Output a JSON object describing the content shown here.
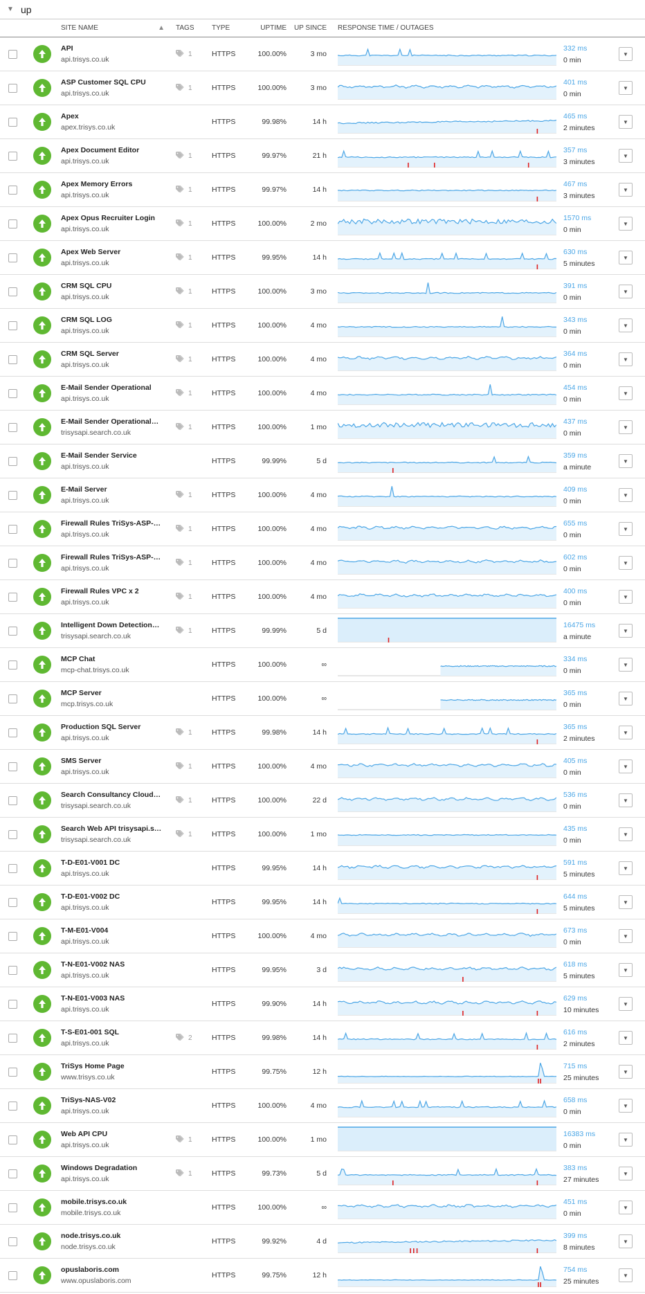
{
  "group": {
    "name": "up"
  },
  "header": {
    "site_name": "SITE NAME",
    "tags": "TAGS",
    "type": "TYPE",
    "uptime": "UPTIME",
    "up_since": "UP SINCE",
    "response": "RESPONSE TIME / OUTAGES"
  },
  "colors": {
    "up_green": "#5fb832",
    "spark_blue": "#4ba6e6",
    "outage_red": "#e02020"
  },
  "rows": [
    {
      "name": "API",
      "url": "api.trisys.co.uk",
      "tags": "1",
      "type": "HTTPS",
      "uptime": "100.00%",
      "since": "3 mo",
      "ms": "332 ms",
      "dur": "0 min",
      "style": "spiky",
      "outages": []
    },
    {
      "name": "ASP Customer SQL CPU",
      "url": "api.trisys.co.uk",
      "tags": "1",
      "type": "HTTPS",
      "uptime": "100.00%",
      "since": "3 mo",
      "ms": "401 ms",
      "dur": "0 min",
      "style": "wavy",
      "outages": []
    },
    {
      "name": "Apex",
      "url": "apex.trisys.co.uk",
      "tags": "",
      "type": "HTTPS",
      "uptime": "99.98%",
      "since": "14 h",
      "ms": "465 ms",
      "dur": "2 minutes",
      "style": "rising",
      "outages": [
        0.91
      ]
    },
    {
      "name": "Apex Document Editor",
      "url": "api.trisys.co.uk",
      "tags": "1",
      "type": "HTTPS",
      "uptime": "99.97%",
      "since": "21 h",
      "ms": "357 ms",
      "dur": "3 minutes",
      "style": "spiky",
      "outages": [
        0.32,
        0.44,
        0.87
      ]
    },
    {
      "name": "Apex Memory Errors",
      "url": "api.trisys.co.uk",
      "tags": "1",
      "type": "HTTPS",
      "uptime": "99.97%",
      "since": "14 h",
      "ms": "467 ms",
      "dur": "3 minutes",
      "style": "flat",
      "outages": [
        0.91
      ]
    },
    {
      "name": "Apex Opus Recruiter Login",
      "url": "api.trisys.co.uk",
      "tags": "1",
      "type": "HTTPS",
      "uptime": "100.00%",
      "since": "2 mo",
      "ms": "1570 ms",
      "dur": "0 min",
      "style": "noisy",
      "outages": []
    },
    {
      "name": "Apex Web Server",
      "url": "api.trisys.co.uk",
      "tags": "1",
      "type": "HTTPS",
      "uptime": "99.95%",
      "since": "14 h",
      "ms": "630 ms",
      "dur": "5 minutes",
      "style": "spiky",
      "outages": [
        0.91
      ]
    },
    {
      "name": "CRM SQL CPU",
      "url": "api.trisys.co.uk",
      "tags": "1",
      "type": "HTTPS",
      "uptime": "100.00%",
      "since": "3 mo",
      "ms": "391 ms",
      "dur": "0 min",
      "style": "bigspike",
      "outages": []
    },
    {
      "name": "CRM SQL LOG",
      "url": "api.trisys.co.uk",
      "tags": "1",
      "type": "HTTPS",
      "uptime": "100.00%",
      "since": "4 mo",
      "ms": "343 ms",
      "dur": "0 min",
      "style": "bigspike",
      "outages": []
    },
    {
      "name": "CRM SQL Server",
      "url": "api.trisys.co.uk",
      "tags": "1",
      "type": "HTTPS",
      "uptime": "100.00%",
      "since": "4 mo",
      "ms": "364 ms",
      "dur": "0 min",
      "style": "wavy",
      "outages": []
    },
    {
      "name": "E-Mail Sender Operational",
      "url": "api.trisys.co.uk",
      "tags": "1",
      "type": "HTTPS",
      "uptime": "100.00%",
      "since": "4 mo",
      "ms": "454 ms",
      "dur": "0 min",
      "style": "bigspike",
      "outages": []
    },
    {
      "name": "E-Mail Sender Operational…",
      "url": "trisysapi.search.co.uk",
      "tags": "1",
      "type": "HTTPS",
      "uptime": "100.00%",
      "since": "1 mo",
      "ms": "437 ms",
      "dur": "0 min",
      "style": "noisy",
      "outages": []
    },
    {
      "name": "E-Mail Sender Service",
      "url": "api.trisys.co.uk",
      "tags": "",
      "type": "HTTPS",
      "uptime": "99.99%",
      "since": "5 d",
      "ms": "359 ms",
      "dur": "a minute",
      "style": "spiky",
      "outages": [
        0.25
      ]
    },
    {
      "name": "E-Mail Server",
      "url": "api.trisys.co.uk",
      "tags": "1",
      "type": "HTTPS",
      "uptime": "100.00%",
      "since": "4 mo",
      "ms": "409 ms",
      "dur": "0 min",
      "style": "bigspike",
      "outages": []
    },
    {
      "name": "Firewall Rules TriSys-ASP-…",
      "url": "api.trisys.co.uk",
      "tags": "1",
      "type": "HTTPS",
      "uptime": "100.00%",
      "since": "4 mo",
      "ms": "655 ms",
      "dur": "0 min",
      "style": "wavy",
      "outages": []
    },
    {
      "name": "Firewall Rules TriSys-ASP-…",
      "url": "api.trisys.co.uk",
      "tags": "1",
      "type": "HTTPS",
      "uptime": "100.00%",
      "since": "4 mo",
      "ms": "602 ms",
      "dur": "0 min",
      "style": "wavy",
      "outages": []
    },
    {
      "name": "Firewall Rules VPC x 2",
      "url": "api.trisys.co.uk",
      "tags": "1",
      "type": "HTTPS",
      "uptime": "100.00%",
      "since": "4 mo",
      "ms": "400 ms",
      "dur": "0 min",
      "style": "wavy",
      "outages": []
    },
    {
      "name": "Intelligent Down Detection…",
      "url": "trisysapi.search.co.uk",
      "tags": "1",
      "type": "HTTPS",
      "uptime": "99.99%",
      "since": "5 d",
      "ms": "16475 ms",
      "dur": "a minute",
      "style": "full",
      "outages": [
        0.23
      ]
    },
    {
      "name": "MCP Chat",
      "url": "mcp-chat.trisys.co.uk",
      "tags": "",
      "type": "HTTPS",
      "uptime": "100.00%",
      "since": "∞",
      "ms": "334 ms",
      "dur": "0 min",
      "style": "partial",
      "outages": []
    },
    {
      "name": "MCP Server",
      "url": "mcp.trisys.co.uk",
      "tags": "",
      "type": "HTTPS",
      "uptime": "100.00%",
      "since": "∞",
      "ms": "365 ms",
      "dur": "0 min",
      "style": "partial",
      "outages": []
    },
    {
      "name": "Production SQL Server",
      "url": "api.trisys.co.uk",
      "tags": "1",
      "type": "HTTPS",
      "uptime": "99.98%",
      "since": "14 h",
      "ms": "365 ms",
      "dur": "2 minutes",
      "style": "spiky",
      "outages": [
        0.91
      ]
    },
    {
      "name": "SMS Server",
      "url": "api.trisys.co.uk",
      "tags": "1",
      "type": "HTTPS",
      "uptime": "100.00%",
      "since": "4 mo",
      "ms": "405 ms",
      "dur": "0 min",
      "style": "wavy",
      "outages": []
    },
    {
      "name": "Search Consultancy Cloud…",
      "url": "trisysapi.search.co.uk",
      "tags": "1",
      "type": "HTTPS",
      "uptime": "100.00%",
      "since": "22 d",
      "ms": "536 ms",
      "dur": "0 min",
      "style": "wavy",
      "outages": []
    },
    {
      "name": "Search Web API trisysapi.s…",
      "url": "trisysapi.search.co.uk",
      "tags": "1",
      "type": "HTTPS",
      "uptime": "100.00%",
      "since": "1 mo",
      "ms": "435 ms",
      "dur": "0 min",
      "style": "flat",
      "outages": []
    },
    {
      "name": "T-D-E01-V001 DC",
      "url": "api.trisys.co.uk",
      "tags": "",
      "type": "HTTPS",
      "uptime": "99.95%",
      "since": "14 h",
      "ms": "591 ms",
      "dur": "5 minutes",
      "style": "wavy",
      "outages": [
        0.91
      ]
    },
    {
      "name": "T-D-E01-V002 DC",
      "url": "api.trisys.co.uk",
      "tags": "",
      "type": "HTTPS",
      "uptime": "99.95%",
      "since": "14 h",
      "ms": "644 ms",
      "dur": "5 minutes",
      "style": "spiky",
      "outages": [
        0.91
      ]
    },
    {
      "name": "T-M-E01-V004",
      "url": "api.trisys.co.uk",
      "tags": "",
      "type": "HTTPS",
      "uptime": "100.00%",
      "since": "4 mo",
      "ms": "673 ms",
      "dur": "0 min",
      "style": "wavy",
      "outages": []
    },
    {
      "name": "T-N-E01-V002 NAS",
      "url": "api.trisys.co.uk",
      "tags": "",
      "type": "HTTPS",
      "uptime": "99.95%",
      "since": "3 d",
      "ms": "618 ms",
      "dur": "5 minutes",
      "style": "wavy",
      "outages": [
        0.57
      ]
    },
    {
      "name": "T-N-E01-V003 NAS",
      "url": "api.trisys.co.uk",
      "tags": "",
      "type": "HTTPS",
      "uptime": "99.90%",
      "since": "14 h",
      "ms": "629 ms",
      "dur": "10 minutes",
      "style": "wavy",
      "outages": [
        0.57,
        0.91
      ]
    },
    {
      "name": "T-S-E01-001 SQL",
      "url": "api.trisys.co.uk",
      "tags": "2",
      "type": "HTTPS",
      "uptime": "99.98%",
      "since": "14 h",
      "ms": "616 ms",
      "dur": "2 minutes",
      "style": "spiky",
      "outages": [
        0.91
      ]
    },
    {
      "name": "TriSys Home Page",
      "url": "www.trisys.co.uk",
      "tags": "",
      "type": "HTTPS",
      "uptime": "99.75%",
      "since": "12 h",
      "ms": "715 ms",
      "dur": "25 minutes",
      "style": "endspike",
      "outages": [
        0.915,
        0.925
      ]
    },
    {
      "name": "TriSys-NAS-V02",
      "url": "api.trisys.co.uk",
      "tags": "",
      "type": "HTTPS",
      "uptime": "100.00%",
      "since": "4 mo",
      "ms": "658 ms",
      "dur": "0 min",
      "style": "spiky",
      "outages": []
    },
    {
      "name": "Web API CPU",
      "url": "api.trisys.co.uk",
      "tags": "1",
      "type": "HTTPS",
      "uptime": "100.00%",
      "since": "1 mo",
      "ms": "16383 ms",
      "dur": "0 min",
      "style": "full",
      "outages": []
    },
    {
      "name": "Windows Degradation",
      "url": "api.trisys.co.uk",
      "tags": "1",
      "type": "HTTPS",
      "uptime": "99.73%",
      "since": "5 d",
      "ms": "383 ms",
      "dur": "27 minutes",
      "style": "spiky",
      "outages": [
        0.25,
        0.91
      ]
    },
    {
      "name": "mobile.trisys.co.uk",
      "url": "mobile.trisys.co.uk",
      "tags": "",
      "type": "HTTPS",
      "uptime": "100.00%",
      "since": "∞",
      "ms": "451 ms",
      "dur": "0 min",
      "style": "wavy",
      "outages": []
    },
    {
      "name": "node.trisys.co.uk",
      "url": "node.trisys.co.uk",
      "tags": "",
      "type": "HTTPS",
      "uptime": "99.92%",
      "since": "4 d",
      "ms": "399 ms",
      "dur": "8 minutes",
      "style": "rising",
      "outages": [
        0.33,
        0.345,
        0.36,
        0.91
      ]
    },
    {
      "name": "opuslaboris.com",
      "url": "www.opuslaboris.com",
      "tags": "",
      "type": "HTTPS",
      "uptime": "99.75%",
      "since": "12 h",
      "ms": "754 ms",
      "dur": "25 minutes",
      "style": "endspike",
      "outages": [
        0.915,
        0.925
      ]
    }
  ]
}
